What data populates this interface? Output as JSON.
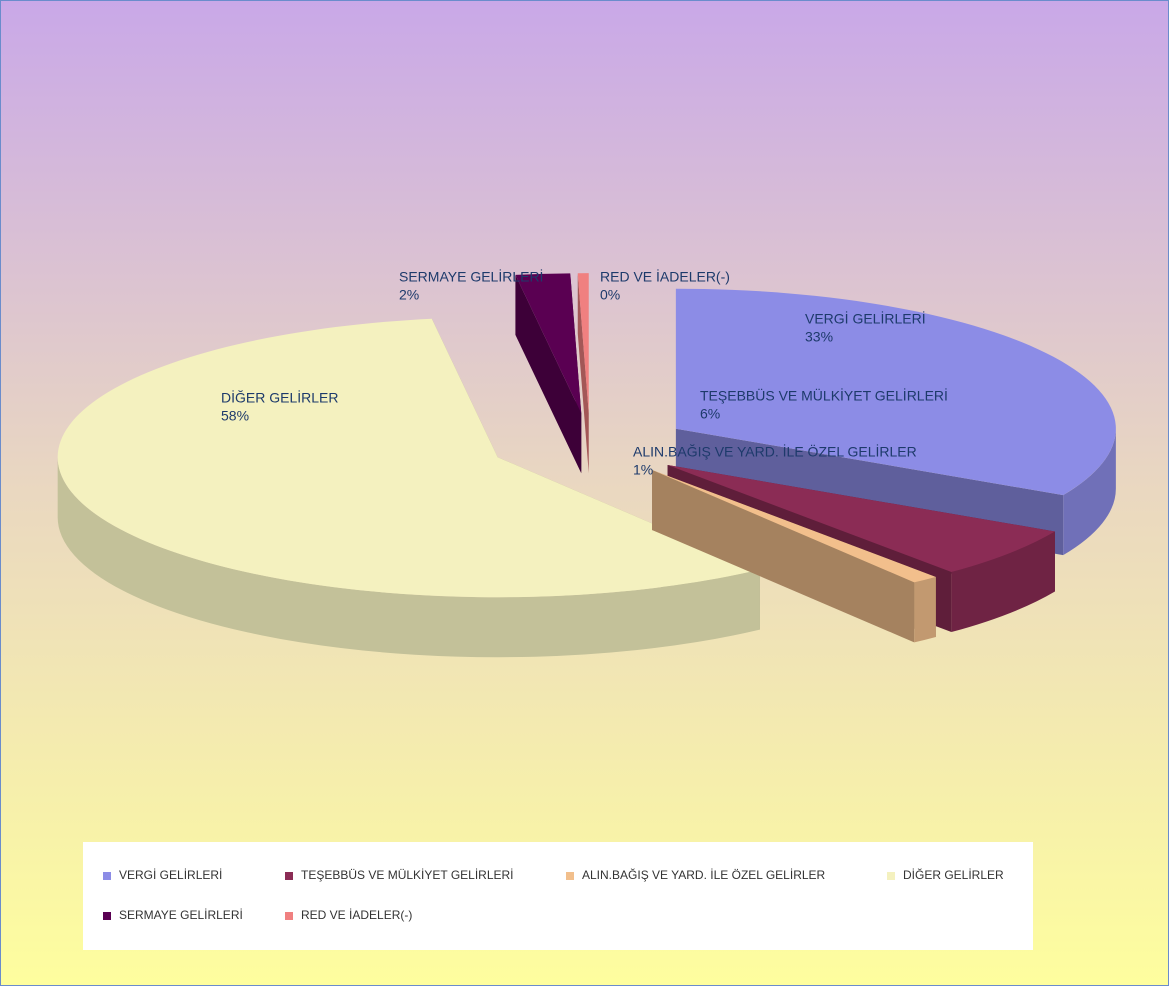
{
  "chart_data": {
    "type": "pie3d",
    "categories": [
      "VERGİ GELİRLERİ",
      "TEŞEBBÜS VE MÜLKİYET GELİRLERİ",
      "ALIN.BAĞIŞ VE YARD. İLE ÖZEL GELİRLER",
      "DİĞER GELİRLER",
      "SERMAYE GELİRLERİ",
      "RED VE İADELER(-)"
    ],
    "values": [
      33,
      6,
      1,
      58,
      2,
      0.4
    ],
    "value_labels": [
      "33%",
      "6%",
      "1%",
      "58%",
      "2%",
      "0%"
    ],
    "colors": [
      "#8c8ce6",
      "#8b2c55",
      "#f2bf8c",
      "#f4f1bf",
      "#5a0052",
      "#f08080"
    ],
    "legend": "bottom"
  }
}
